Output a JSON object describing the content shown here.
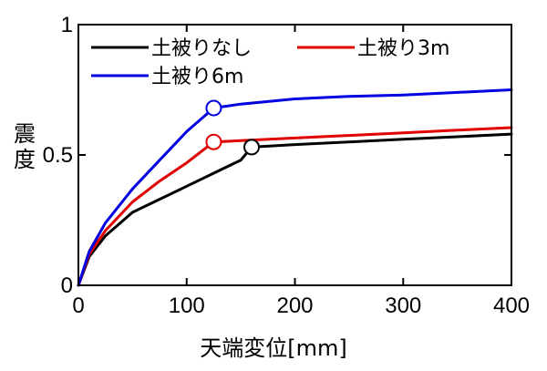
{
  "chart_data": {
    "type": "line",
    "title": "",
    "xlabel": "天端変位[mm]",
    "ylabel": "震度",
    "xlim": [
      0,
      400
    ],
    "ylim": [
      0,
      1
    ],
    "xticks": [
      0,
      100,
      200,
      300,
      400
    ],
    "xtick_labels": [
      "0",
      "100",
      "200",
      "300",
      "400"
    ],
    "yticks": [
      0,
      0.5,
      1
    ],
    "ytick_labels": [
      "0",
      "0.5",
      "1"
    ],
    "grid": false,
    "legend_position": "top-left",
    "series": [
      {
        "name": "土被りなし",
        "color": "#000000",
        "x": [
          0,
          10,
          25,
          50,
          75,
          100,
          125,
          150,
          160,
          200,
          250,
          300,
          350,
          400
        ],
        "y": [
          0,
          0.11,
          0.19,
          0.28,
          0.33,
          0.38,
          0.43,
          0.48,
          0.53,
          0.54,
          0.55,
          0.56,
          0.57,
          0.58
        ],
        "marker": {
          "x": 160,
          "y": 0.53
        }
      },
      {
        "name": "土被り3m",
        "color": "#e00000",
        "x": [
          0,
          10,
          25,
          50,
          75,
          100,
          125,
          150,
          200,
          250,
          300,
          350,
          400
        ],
        "y": [
          0,
          0.12,
          0.21,
          0.32,
          0.4,
          0.47,
          0.55,
          0.555,
          0.565,
          0.575,
          0.585,
          0.595,
          0.605
        ],
        "marker": {
          "x": 125,
          "y": 0.55
        }
      },
      {
        "name": "土被り6m",
        "color": "#0000e0",
        "x": [
          0,
          10,
          25,
          50,
          75,
          100,
          125,
          150,
          200,
          250,
          300,
          350,
          400
        ],
        "y": [
          0,
          0.13,
          0.24,
          0.37,
          0.48,
          0.59,
          0.68,
          0.695,
          0.715,
          0.725,
          0.73,
          0.74,
          0.75
        ],
        "marker": {
          "x": 125,
          "y": 0.68
        }
      }
    ]
  }
}
